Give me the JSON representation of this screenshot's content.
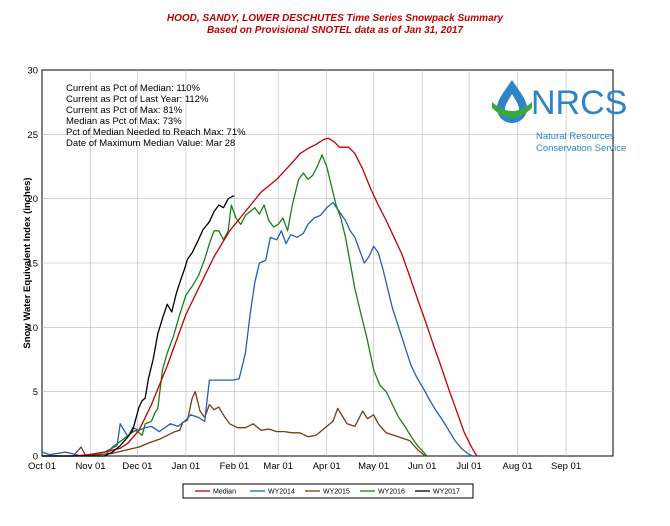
{
  "header": {
    "title": "HOOD, SANDY, LOWER DESCHUTES Time Series Snowpack Summary",
    "subtitle": "Based on Provisional SNOTEL data as of Jan 31, 2017"
  },
  "stats": [
    "Current as Pct of Median:  110%",
    "Current as Pct of Last Year: 112%",
    "Current as Pct of Max:  81%",
    "Median  as Pct of Max: 73%",
    "Pct of Median Needed to Reach Max: 71%",
    "Date of Maximum  Median Value: Mar 28"
  ],
  "logo": {
    "name": "NRCS",
    "line1": "Natural Resources",
    "line2": "Conservation Service"
  },
  "chart_data": {
    "type": "line",
    "ylabel": "Snow Water Equivalent Index (inches)",
    "xlabel": "",
    "ylim": [
      0,
      30
    ],
    "yticks": [
      0,
      5,
      10,
      15,
      20,
      25,
      30
    ],
    "xlim_days": [
      0,
      365
    ],
    "xticks": [
      {
        "label": "Oct 01",
        "day": 0
      },
      {
        "label": "Nov 01",
        "day": 31
      },
      {
        "label": "Dec 01",
        "day": 61
      },
      {
        "label": "Jan 01",
        "day": 92
      },
      {
        "label": "Feb 01",
        "day": 123
      },
      {
        "label": "Mar 01",
        "day": 151
      },
      {
        "label": "Apr 01",
        "day": 182
      },
      {
        "label": "May 01",
        "day": 212
      },
      {
        "label": "Jun 01",
        "day": 243
      },
      {
        "label": "Jul 01",
        "day": 273
      },
      {
        "label": "Aug 01",
        "day": 304
      },
      {
        "label": "Sep 01",
        "day": 335
      }
    ],
    "grid": true,
    "legend_position": "bottom",
    "series": [
      {
        "name": "Median",
        "color": "#c00000",
        "points": [
          [
            0,
            0
          ],
          [
            20,
            0
          ],
          [
            30,
            0.1
          ],
          [
            40,
            0.3
          ],
          [
            50,
            0.6
          ],
          [
            55,
            1.0
          ],
          [
            62,
            2.0
          ],
          [
            70,
            4.0
          ],
          [
            80,
            7.0
          ],
          [
            92,
            11.0
          ],
          [
            100,
            13.0
          ],
          [
            110,
            15.5
          ],
          [
            120,
            17.5
          ],
          [
            130,
            19.0
          ],
          [
            140,
            20.5
          ],
          [
            150,
            21.5
          ],
          [
            160,
            22.8
          ],
          [
            165,
            23.5
          ],
          [
            170,
            23.9
          ],
          [
            175,
            24.2
          ],
          [
            180,
            24.6
          ],
          [
            183,
            24.7
          ],
          [
            187,
            24.4
          ],
          [
            190,
            24.0
          ],
          [
            196,
            24.0
          ],
          [
            200,
            23.5
          ],
          [
            205,
            22.3
          ],
          [
            210,
            20.8
          ],
          [
            215,
            19.5
          ],
          [
            220,
            18.3
          ],
          [
            225,
            17.0
          ],
          [
            230,
            15.7
          ],
          [
            235,
            14.0
          ],
          [
            240,
            12.2
          ],
          [
            245,
            10.5
          ],
          [
            250,
            8.7
          ],
          [
            255,
            7.0
          ],
          [
            260,
            5.2
          ],
          [
            265,
            3.5
          ],
          [
            270,
            1.8
          ],
          [
            275,
            0.6
          ],
          [
            278,
            0
          ]
        ]
      },
      {
        "name": "WY2014",
        "color": "#1f5fbf",
        "points": [
          [
            0,
            0.3
          ],
          [
            5,
            0.1
          ],
          [
            15,
            0.3
          ],
          [
            22,
            0.1
          ],
          [
            25,
            0
          ],
          [
            40,
            0.3
          ],
          [
            48,
            0.8
          ],
          [
            50,
            2.5
          ],
          [
            55,
            1.5
          ],
          [
            58,
            2.2
          ],
          [
            62,
            2.0
          ],
          [
            66,
            2.2
          ],
          [
            70,
            2.3
          ],
          [
            75,
            1.9
          ],
          [
            82,
            2.5
          ],
          [
            87,
            2.3
          ],
          [
            92,
            2.8
          ],
          [
            95,
            3.2
          ],
          [
            100,
            3.0
          ],
          [
            104,
            2.7
          ],
          [
            107,
            5.9
          ],
          [
            112,
            5.9
          ],
          [
            117,
            5.9
          ],
          [
            122,
            5.9
          ],
          [
            126,
            6.0
          ],
          [
            130,
            8.0
          ],
          [
            133,
            11.0
          ],
          [
            136,
            13.5
          ],
          [
            139,
            15.0
          ],
          [
            143,
            15.2
          ],
          [
            146,
            17.0
          ],
          [
            150,
            16.8
          ],
          [
            153,
            17.5
          ],
          [
            156,
            16.5
          ],
          [
            159,
            17.2
          ],
          [
            163,
            17.0
          ],
          [
            167,
            17.3
          ],
          [
            170,
            18.0
          ],
          [
            174,
            18.5
          ],
          [
            178,
            18.7
          ],
          [
            182,
            19.3
          ],
          [
            186,
            19.7
          ],
          [
            190,
            19.0
          ],
          [
            194,
            18.3
          ],
          [
            197,
            17.5
          ],
          [
            200,
            17.0
          ],
          [
            203,
            16.0
          ],
          [
            206,
            15.0
          ],
          [
            209,
            15.5
          ],
          [
            212,
            16.3
          ],
          [
            215,
            15.8
          ],
          [
            218,
            14.5
          ],
          [
            221,
            13.0
          ],
          [
            224,
            11.5
          ],
          [
            228,
            10.0
          ],
          [
            232,
            8.5
          ],
          [
            236,
            7.0
          ],
          [
            240,
            6.0
          ],
          [
            244,
            5.2
          ],
          [
            248,
            4.3
          ],
          [
            252,
            3.5
          ],
          [
            256,
            2.8
          ],
          [
            260,
            2.0
          ],
          [
            264,
            1.2
          ],
          [
            268,
            0.6
          ],
          [
            272,
            0.2
          ],
          [
            275,
            0
          ]
        ]
      },
      {
        "name": "WY2015",
        "color": "#7b3a15",
        "points": [
          [
            0,
            0
          ],
          [
            20,
            0
          ],
          [
            25,
            0.7
          ],
          [
            28,
            0
          ],
          [
            36,
            0.1
          ],
          [
            45,
            0.2
          ],
          [
            55,
            0.5
          ],
          [
            62,
            0.7
          ],
          [
            68,
            1.0
          ],
          [
            75,
            1.3
          ],
          [
            80,
            1.6
          ],
          [
            85,
            1.9
          ],
          [
            88,
            2.0
          ],
          [
            90,
            2.6
          ],
          [
            93,
            2.8
          ],
          [
            96,
            4.5
          ],
          [
            98,
            5.0
          ],
          [
            101,
            3.5
          ],
          [
            104,
            3.0
          ],
          [
            107,
            4.0
          ],
          [
            110,
            3.6
          ],
          [
            113,
            3.8
          ],
          [
            117,
            3.0
          ],
          [
            120,
            2.5
          ],
          [
            125,
            2.2
          ],
          [
            130,
            2.2
          ],
          [
            135,
            2.5
          ],
          [
            140,
            2.0
          ],
          [
            145,
            2.1
          ],
          [
            150,
            1.9
          ],
          [
            155,
            1.9
          ],
          [
            160,
            1.8
          ],
          [
            165,
            1.8
          ],
          [
            170,
            1.5
          ],
          [
            175,
            1.6
          ],
          [
            178,
            1.9
          ],
          [
            182,
            2.3
          ],
          [
            186,
            2.7
          ],
          [
            189,
            3.7
          ],
          [
            192,
            3.1
          ],
          [
            195,
            2.5
          ],
          [
            200,
            2.3
          ],
          [
            205,
            3.5
          ],
          [
            208,
            2.9
          ],
          [
            212,
            3.2
          ],
          [
            215,
            2.5
          ],
          [
            220,
            1.8
          ],
          [
            225,
            1.6
          ],
          [
            230,
            1.4
          ],
          [
            235,
            1.2
          ],
          [
            240,
            0.5
          ],
          [
            243,
            0.2
          ],
          [
            245,
            0
          ]
        ]
      },
      {
        "name": "WY2016",
        "color": "#1a7f1a",
        "points": [
          [
            0,
            0
          ],
          [
            40,
            0
          ],
          [
            45,
            0.7
          ],
          [
            52,
            1.3
          ],
          [
            56,
            1.7
          ],
          [
            60,
            2.0
          ],
          [
            64,
            1.6
          ],
          [
            66,
            2.5
          ],
          [
            68,
            2.6
          ],
          [
            70,
            2.7
          ],
          [
            72,
            3.3
          ],
          [
            74,
            3.7
          ],
          [
            77,
            6.7
          ],
          [
            80,
            8.0
          ],
          [
            84,
            9.3
          ],
          [
            88,
            11.0
          ],
          [
            92,
            12.5
          ],
          [
            96,
            13.2
          ],
          [
            100,
            14.0
          ],
          [
            104,
            15.3
          ],
          [
            107,
            16.5
          ],
          [
            110,
            17.5
          ],
          [
            113,
            17.5
          ],
          [
            116,
            16.8
          ],
          [
            119,
            17.5
          ],
          [
            121,
            19.5
          ],
          [
            124,
            18.5
          ],
          [
            127,
            18.0
          ],
          [
            130,
            18.7
          ],
          [
            133,
            19.0
          ],
          [
            136,
            19.3
          ],
          [
            139,
            18.8
          ],
          [
            142,
            19.5
          ],
          [
            145,
            18.3
          ],
          [
            148,
            17.8
          ],
          [
            151,
            18.0
          ],
          [
            154,
            18.5
          ],
          [
            157,
            17.5
          ],
          [
            160,
            19.5
          ],
          [
            164,
            21.5
          ],
          [
            167,
            22.0
          ],
          [
            170,
            21.5
          ],
          [
            173,
            21.8
          ],
          [
            176,
            22.5
          ],
          [
            179,
            23.4
          ],
          [
            182,
            22.5
          ],
          [
            185,
            21.0
          ],
          [
            188,
            19.5
          ],
          [
            191,
            18.5
          ],
          [
            194,
            17.0
          ],
          [
            197,
            15.0
          ],
          [
            200,
            13.0
          ],
          [
            204,
            11.0
          ],
          [
            208,
            9.0
          ],
          [
            212,
            6.7
          ],
          [
            216,
            5.5
          ],
          [
            220,
            5.0
          ],
          [
            224,
            4.0
          ],
          [
            228,
            3.0
          ],
          [
            232,
            2.3
          ],
          [
            236,
            1.5
          ],
          [
            240,
            0.8
          ],
          [
            244,
            0.3
          ],
          [
            246,
            0
          ]
        ]
      },
      {
        "name": "WY2017",
        "color": "#000000",
        "points": [
          [
            0,
            0
          ],
          [
            40,
            0
          ],
          [
            45,
            0.3
          ],
          [
            50,
            0.8
          ],
          [
            55,
            1.5
          ],
          [
            58,
            2.0
          ],
          [
            62,
            3.8
          ],
          [
            64,
            4.3
          ],
          [
            66,
            4.5
          ],
          [
            68,
            6.0
          ],
          [
            71,
            7.5
          ],
          [
            74,
            9.5
          ],
          [
            77,
            10.7
          ],
          [
            80,
            11.8
          ],
          [
            83,
            11.2
          ],
          [
            86,
            12.7
          ],
          [
            89,
            13.8
          ],
          [
            91,
            14.5
          ],
          [
            93,
            15.3
          ],
          [
            96,
            15.8
          ],
          [
            100,
            16.8
          ],
          [
            103,
            17.6
          ],
          [
            107,
            18.2
          ],
          [
            110,
            19.0
          ],
          [
            113,
            19.5
          ],
          [
            116,
            19.3
          ],
          [
            119,
            20.0
          ],
          [
            122,
            20.2
          ],
          [
            123,
            20.2
          ]
        ]
      }
    ]
  }
}
